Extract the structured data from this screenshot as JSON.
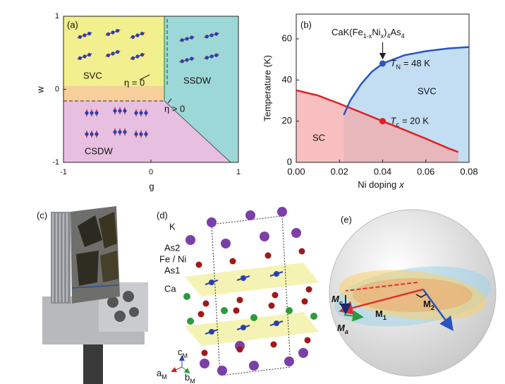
{
  "chart_data": [
    {
      "type": "phase-diagram",
      "label": "(a)",
      "x_label": "g",
      "y_label": "w",
      "xlim": [
        -1,
        1
      ],
      "ylim": [
        -1,
        1
      ],
      "xticks": [
        -1,
        0,
        1
      ],
      "yticks": [
        -1,
        0,
        1
      ],
      "regions": [
        "SVC",
        "SSDW",
        "CSDW"
      ],
      "annotations": [
        "η = 0",
        "η > 0"
      ]
    },
    {
      "type": "line",
      "label": "(b)",
      "title_parts": [
        "CaK(Fe",
        "1-x",
        "Ni",
        "x",
        ")",
        "4",
        "As",
        "4"
      ],
      "x_label_parts": [
        "Ni doping",
        "x"
      ],
      "y_label": "Temperature (K)",
      "xlim": [
        0,
        0.08
      ],
      "ylim": [
        0,
        72
      ],
      "xticks": [
        {
          "value": 0,
          "label": "0.00"
        },
        0.02,
        0.04,
        0.06,
        0.08
      ],
      "yticks": [
        0,
        20,
        40,
        60
      ],
      "series": [
        {
          "color": "#e02020",
          "fill": "#f4a9a9",
          "x": [
            0,
            0.01,
            0.02,
            0.03,
            0.04,
            0.05,
            0.06,
            0.07,
            0.075
          ],
          "values": [
            35,
            32.5,
            28.5,
            24.3,
            20,
            15.8,
            11.5,
            7,
            5
          ]
        },
        {
          "color": "#2a55c0",
          "fill": "#bcd9f2",
          "x": [
            0.022,
            0.025,
            0.03,
            0.035,
            0.04,
            0.05,
            0.06,
            0.07,
            0.08
          ],
          "values": [
            23,
            30,
            38,
            44,
            48,
            52,
            54,
            55.3,
            56
          ]
        }
      ],
      "points": [
        {
          "x": 0.04,
          "y": 48,
          "color": "#2a55c0",
          "label_parts": [
            "T",
            "N",
            "= 48 K"
          ]
        },
        {
          "x": 0.04,
          "y": 20,
          "color": "#e02020",
          "label_parts": [
            "T",
            "c",
            "= 20 K"
          ]
        }
      ],
      "regions": [
        "SC",
        "SVC"
      ]
    }
  ],
  "panel_c": {
    "label": "(c)"
  },
  "panel_d": {
    "label": "(d)",
    "atoms": [
      "K",
      "As2",
      "Fe / Ni",
      "As1",
      "Ca"
    ],
    "axes": [
      [
        "c",
        "M"
      ],
      [
        "a",
        "M"
      ],
      [
        "b",
        "M"
      ]
    ]
  },
  "panel_e": {
    "label": "(e)",
    "vectors": [
      [
        "M",
        "c"
      ],
      [
        "M",
        "a"
      ],
      [
        "M",
        "1"
      ],
      [
        "M",
        "2"
      ]
    ]
  }
}
